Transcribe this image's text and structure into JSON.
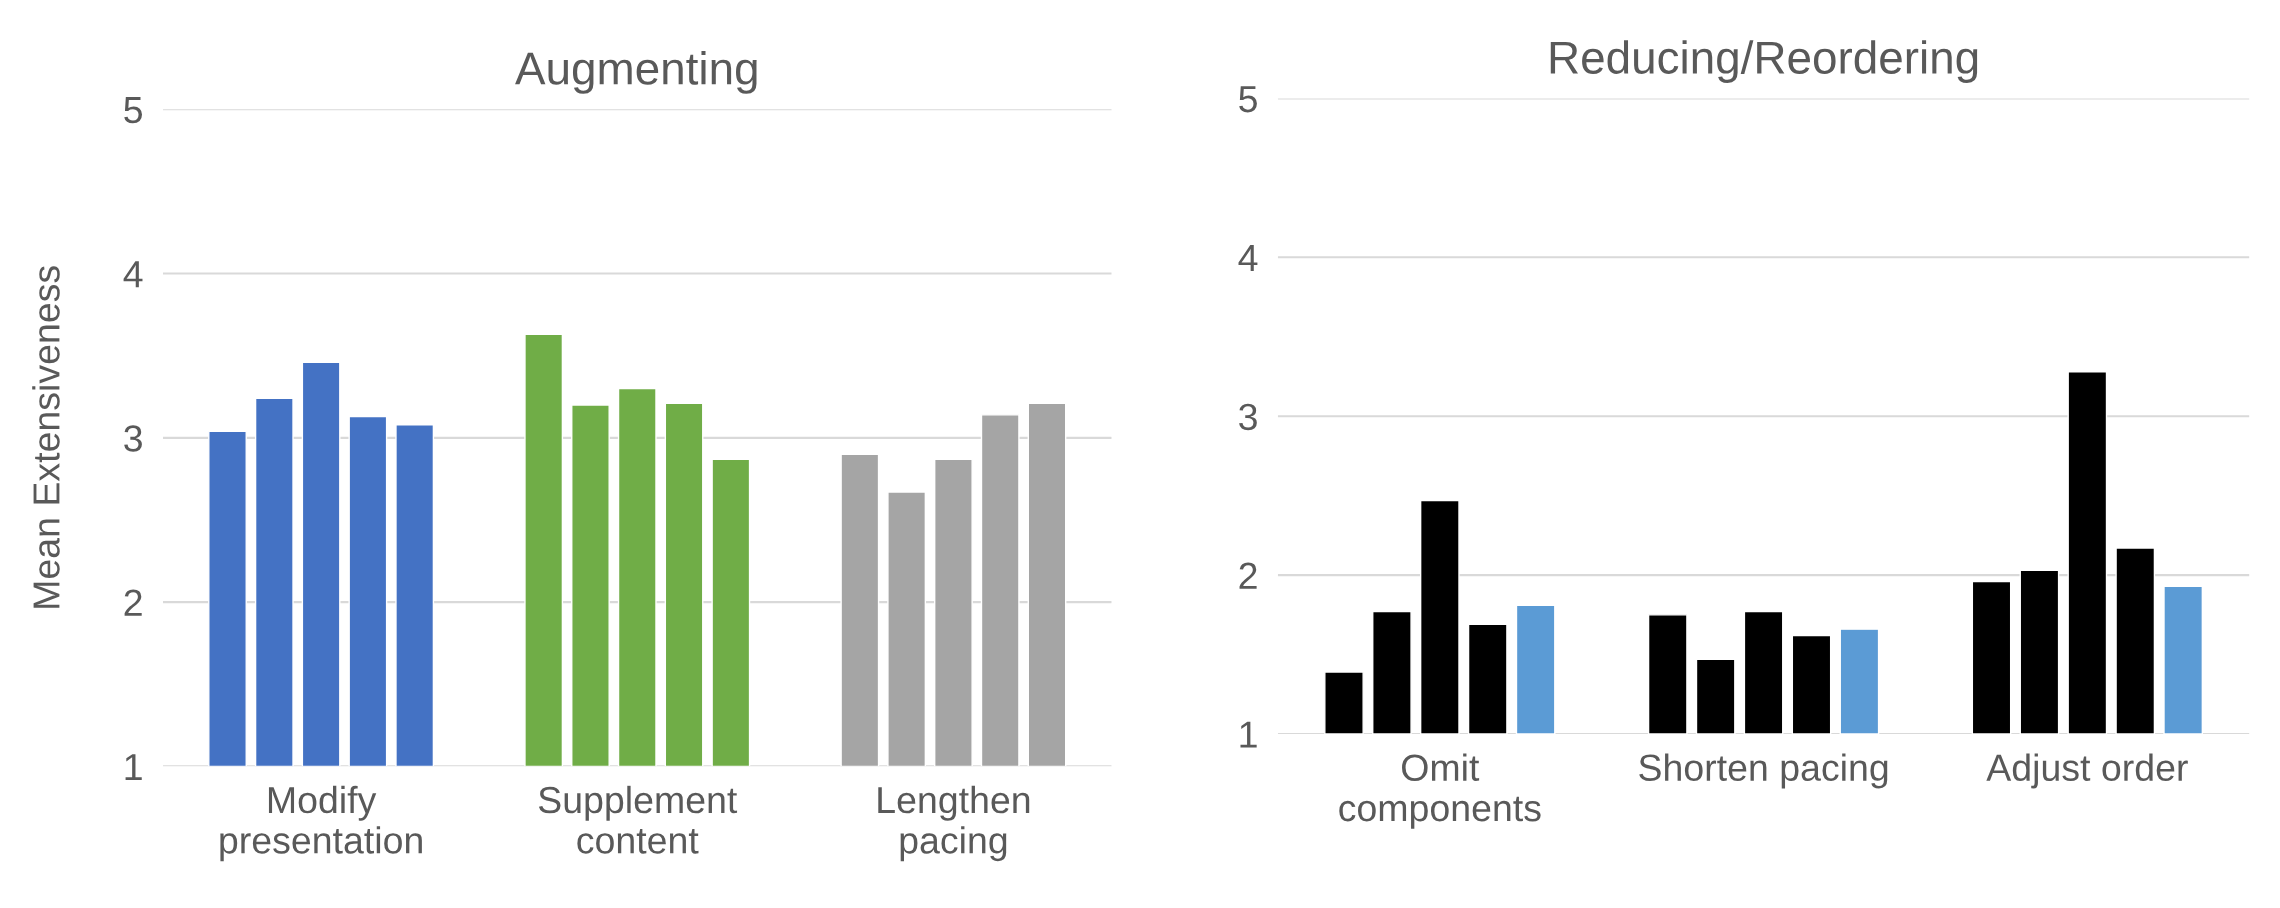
{
  "chart_data": [
    {
      "type": "bar",
      "title": "Augmenting",
      "ylabel": "Mean Extensiveness",
      "categories": [
        "Modify\npresentation",
        "Supplement\ncontent",
        "Lengthen\npacing"
      ],
      "ylim": [
        1,
        5
      ],
      "yticks": [
        1,
        2,
        3,
        4,
        5
      ],
      "grid": "y",
      "legend": false,
      "series": [
        {
          "colors": [
            "#4472c4",
            "#70ad47",
            "#a5a5a5"
          ],
          "values": [
            3.04,
            3.63,
            2.9
          ]
        },
        {
          "colors": [
            "#4472c4",
            "#70ad47",
            "#a5a5a5"
          ],
          "values": [
            3.24,
            3.2,
            2.67
          ]
        },
        {
          "colors": [
            "#4472c4",
            "#70ad47",
            "#a5a5a5"
          ],
          "values": [
            3.46,
            3.3,
            2.87
          ]
        },
        {
          "colors": [
            "#4472c4",
            "#70ad47",
            "#a5a5a5"
          ],
          "values": [
            3.13,
            3.21,
            3.14
          ]
        },
        {
          "colors": [
            "#4472c4",
            "#70ad47",
            "#a5a5a5"
          ],
          "values": [
            3.08,
            2.87,
            3.21
          ]
        }
      ]
    },
    {
      "type": "bar",
      "title": "Reducing/Reordering",
      "categories": [
        "Omit\ncomponents",
        "Shorten pacing",
        "Adjust order"
      ],
      "ylim": [
        1,
        5
      ],
      "yticks": [
        1,
        2,
        3,
        4,
        5
      ],
      "grid": "y",
      "legend": false,
      "series": [
        {
          "color": "#000000",
          "values": [
            1.39,
            1.75,
            1.96
          ]
        },
        {
          "color": "#000000",
          "values": [
            1.77,
            1.47,
            2.03
          ]
        },
        {
          "color": "#000000",
          "values": [
            2.47,
            1.77,
            3.28
          ]
        },
        {
          "color": "#000000",
          "values": [
            1.69,
            1.62,
            2.17
          ]
        },
        {
          "color": "#5b9bd5",
          "values": [
            1.81,
            1.66,
            1.93
          ]
        }
      ]
    }
  ]
}
